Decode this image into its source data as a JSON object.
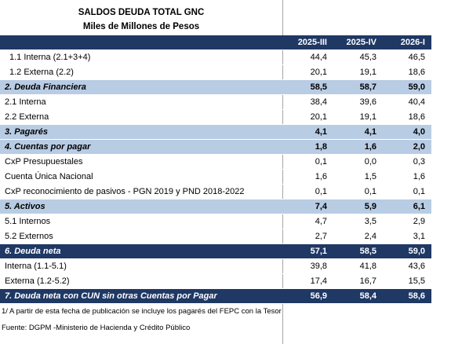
{
  "header": {
    "title": "SALDOS DEUDA TOTAL GNC",
    "subtitle": "Miles de Millones de Pesos"
  },
  "table": {
    "columns": [
      "2025-III",
      "2025-IV",
      "2026-I"
    ],
    "rows": [
      [
        "1.1  Interna (2.1+3+4)",
        "44,4",
        "45,3",
        "46,5"
      ],
      [
        "1.2 Externa (2.2)",
        "20,1",
        "19,1",
        "18,6"
      ],
      [
        "2. Deuda Financiera",
        "58,5",
        "58,7",
        "59,0"
      ],
      [
        "2.1 Interna",
        "38,4",
        "39,6",
        "40,4"
      ],
      [
        "2.2 Externa",
        "20,1",
        "19,1",
        "18,6"
      ],
      [
        "3. Pagarés",
        "4,1",
        "4,1",
        "4,0"
      ],
      [
        "4. Cuentas por pagar",
        "1,8",
        "1,6",
        "2,0"
      ],
      [
        "CxP Presupuestales",
        "0,1",
        "0,0",
        "0,3"
      ],
      [
        "Cuenta Única Nacional",
        "1,6",
        "1,5",
        "1,6"
      ],
      [
        "CxP reconocimiento de pasivos  - PGN 2019 y PND 2018-2022",
        "0,1",
        "0,1",
        "0,1"
      ],
      [
        "5. Activos",
        "7,4",
        "5,9",
        "6,1"
      ],
      [
        "5.1 Internos",
        "4,7",
        "3,5",
        "2,9"
      ],
      [
        "5.2 Externos",
        "2,7",
        "2,4",
        "3,1"
      ],
      [
        "6. Deuda neta",
        "57,1",
        "58,5",
        "59,0"
      ],
      [
        "Interna (1.1-5.1)",
        "39,8",
        "41,8",
        "43,6"
      ],
      [
        "Externa (1.2-5.2)",
        "17,4",
        "16,7",
        "15,5"
      ],
      [
        "7. Deuda neta con CUN sin otras Cuentas por Pagar",
        "56,9",
        "58,4",
        "58,6"
      ]
    ]
  },
  "footnotes": [
    "1/ A partir de esta fecha de publicación se incluye los pagarés del FEPC con la Tesor",
    "Fuente: DGPM -Ministerio de Hacienda y Crédito Público"
  ]
}
